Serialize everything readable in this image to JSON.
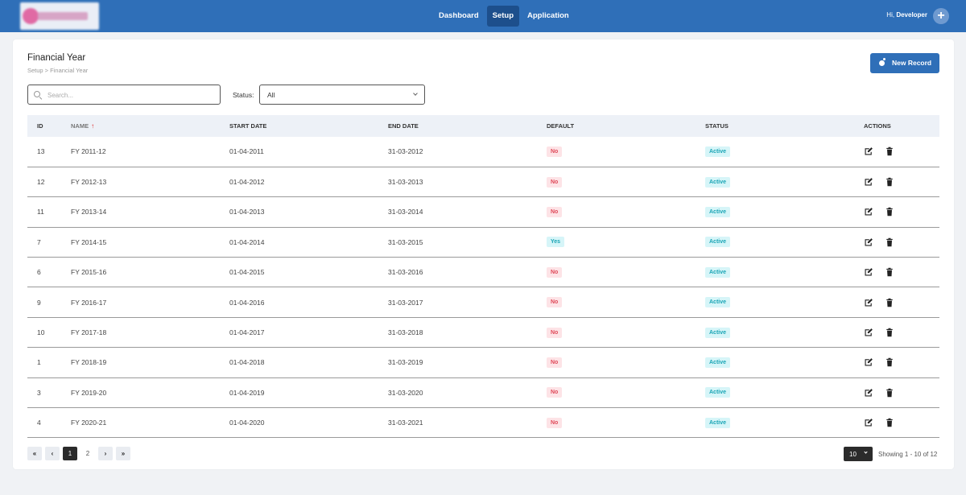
{
  "nav": {
    "items": [
      {
        "label": "Dashboard",
        "active": false
      },
      {
        "label": "Setup",
        "active": true
      },
      {
        "label": "Application",
        "active": false
      }
    ],
    "greeting": "Hi,",
    "user_name": "Developer",
    "add_icon": "plus-circle-icon"
  },
  "page": {
    "title": "Financial Year",
    "breadcrumb": "Setup > Financial Year",
    "new_button_label": "New Record"
  },
  "filters": {
    "search_placeholder": "Search...",
    "search_value": "",
    "status_label": "Status:",
    "status_value": "All"
  },
  "table": {
    "columns": [
      "ID",
      "NAME",
      "START DATE",
      "END DATE",
      "DEFAULT",
      "STATUS",
      "ACTIONS"
    ],
    "sorted_column": "NAME",
    "rows": [
      {
        "id": "13",
        "name": "FY 2011-12",
        "start": "01-04-2011",
        "end": "31-03-2012",
        "default": "No",
        "status": "Active"
      },
      {
        "id": "12",
        "name": "FY 2012-13",
        "start": "01-04-2012",
        "end": "31-03-2013",
        "default": "No",
        "status": "Active"
      },
      {
        "id": "11",
        "name": "FY 2013-14",
        "start": "01-04-2013",
        "end": "31-03-2014",
        "default": "No",
        "status": "Active"
      },
      {
        "id": "7",
        "name": "FY 2014-15",
        "start": "01-04-2014",
        "end": "31-03-2015",
        "default": "Yes",
        "status": "Active"
      },
      {
        "id": "6",
        "name": "FY 2015-16",
        "start": "01-04-2015",
        "end": "31-03-2016",
        "default": "No",
        "status": "Active"
      },
      {
        "id": "9",
        "name": "FY 2016-17",
        "start": "01-04-2016",
        "end": "31-03-2017",
        "default": "No",
        "status": "Active"
      },
      {
        "id": "10",
        "name": "FY 2017-18",
        "start": "01-04-2017",
        "end": "31-03-2018",
        "default": "No",
        "status": "Active"
      },
      {
        "id": "1",
        "name": "FY 2018-19",
        "start": "01-04-2018",
        "end": "31-03-2019",
        "default": "No",
        "status": "Active"
      },
      {
        "id": "3",
        "name": "FY 2019-20",
        "start": "01-04-2019",
        "end": "31-03-2020",
        "default": "No",
        "status": "Active"
      },
      {
        "id": "4",
        "name": "FY 2020-21",
        "start": "01-04-2020",
        "end": "31-03-2021",
        "default": "No",
        "status": "Active"
      }
    ]
  },
  "pagination": {
    "first": "«",
    "prev": "‹",
    "pages": [
      "1",
      "2"
    ],
    "current": "1",
    "next": "›",
    "last": "»",
    "per_page": "10",
    "showing": "Showing 1 - 10 of 12"
  },
  "colors": {
    "header_bg": "#2f6fb8",
    "active_nav": "#1d4f8c",
    "badge_no": "#e04a5a",
    "badge_active": "#1aa5b5"
  }
}
